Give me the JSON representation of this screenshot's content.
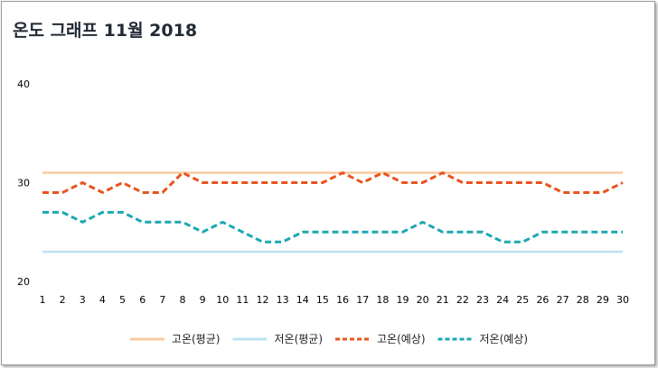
{
  "chart_data": {
    "type": "line",
    "title": "온도 그래프 11월 2018",
    "xlabel": "",
    "ylabel": "",
    "x": [
      1,
      2,
      3,
      4,
      5,
      6,
      7,
      8,
      9,
      10,
      11,
      12,
      13,
      14,
      15,
      16,
      17,
      18,
      19,
      20,
      21,
      22,
      23,
      24,
      25,
      26,
      27,
      28,
      29,
      30
    ],
    "x_tick_labels": [
      "1",
      "2",
      "3",
      "4",
      "5",
      "6",
      "7",
      "8",
      "9",
      "10",
      "11",
      "12",
      "13",
      "14",
      "15",
      "16",
      "17",
      "18",
      "19",
      "20",
      "21",
      "22",
      "23",
      "24",
      "25",
      "26",
      "27",
      "28",
      "29",
      "30"
    ],
    "ylim": [
      20,
      40
    ],
    "y_ticks": [
      20,
      30,
      40
    ],
    "y_tick_labels": [
      "20",
      "30",
      "40"
    ],
    "grid": false,
    "legend_position": "bottom",
    "series": [
      {
        "name": "고온(평균)",
        "style": "solid",
        "color": "#f8cba0",
        "values": [
          31,
          31,
          31,
          31,
          31,
          31,
          31,
          31,
          31,
          31,
          31,
          31,
          31,
          31,
          31,
          31,
          31,
          31,
          31,
          31,
          31,
          31,
          31,
          31,
          31,
          31,
          31,
          31,
          31,
          31
        ]
      },
      {
        "name": "저온(평균)",
        "style": "solid",
        "color": "#bde3f0",
        "values": [
          23,
          23,
          23,
          23,
          23,
          23,
          23,
          23,
          23,
          23,
          23,
          23,
          23,
          23,
          23,
          23,
          23,
          23,
          23,
          23,
          23,
          23,
          23,
          23,
          23,
          23,
          23,
          23,
          23,
          23
        ]
      },
      {
        "name": "고온(예상)",
        "style": "dashed",
        "color": "#e8541e",
        "values": [
          29,
          29,
          30,
          29,
          30,
          29,
          29,
          31,
          30,
          30,
          30,
          30,
          30,
          30,
          30,
          31,
          30,
          31,
          30,
          30,
          31,
          30,
          30,
          30,
          30,
          30,
          29,
          29,
          29,
          30
        ]
      },
      {
        "name": "저온(예상)",
        "style": "dashed",
        "color": "#1ba8b0",
        "values": [
          27,
          27,
          26,
          27,
          27,
          26,
          26,
          26,
          25,
          26,
          25,
          24,
          24,
          25,
          25,
          25,
          25,
          25,
          25,
          26,
          25,
          25,
          25,
          24,
          24,
          25,
          25,
          25,
          25,
          25
        ]
      }
    ]
  }
}
